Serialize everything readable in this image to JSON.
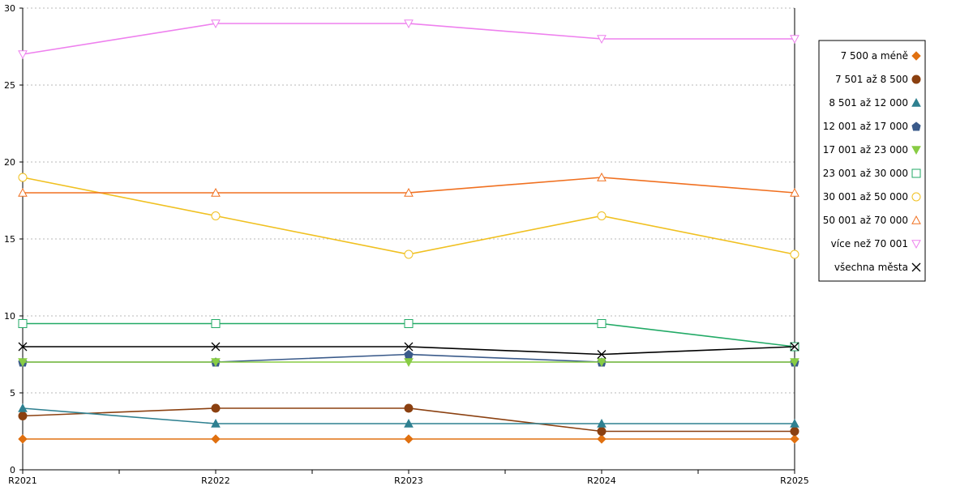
{
  "chart_data": {
    "type": "line",
    "categories": [
      "R2021",
      "R2022",
      "R2023",
      "R2024",
      "R2025"
    ],
    "ylim": [
      0,
      30
    ],
    "yticks": [
      0,
      5,
      10,
      15,
      20,
      25,
      30
    ],
    "grid": "horizontal-dotted",
    "legend_position": "right",
    "series": [
      {
        "name": "7 500 a méně",
        "values": [
          2,
          2,
          2,
          2,
          2
        ],
        "color": "#e07010",
        "marker": "diamond",
        "filled": true
      },
      {
        "name": "7 501 až 8 500",
        "values": [
          3.5,
          4,
          4,
          2.5,
          2.5
        ],
        "color": "#8b4010",
        "marker": "circle",
        "filled": true
      },
      {
        "name": "8 501 až 12 000",
        "values": [
          4,
          3,
          3,
          3,
          3
        ],
        "color": "#2f8090",
        "marker": "triangle-up",
        "filled": true
      },
      {
        "name": "12 001 až 17 000",
        "values": [
          7,
          7,
          7.5,
          7,
          7
        ],
        "color": "#3a5a8a",
        "marker": "pentagon",
        "filled": true
      },
      {
        "name": "17 001 až 23 000",
        "values": [
          7,
          7,
          7,
          7,
          7
        ],
        "color": "#88cc44",
        "marker": "triangle-down",
        "filled": true
      },
      {
        "name": "23 001 až 30 000",
        "values": [
          9.5,
          9.5,
          9.5,
          9.5,
          8
        ],
        "color": "#22aa66",
        "marker": "square",
        "filled": false
      },
      {
        "name": "30 001 až 50 000",
        "values": [
          19,
          16.5,
          14,
          16.5,
          14
        ],
        "color": "#f0c020",
        "marker": "circle",
        "filled": false
      },
      {
        "name": "50 001 až 70 000",
        "values": [
          18,
          18,
          18,
          19,
          18
        ],
        "color": "#f07020",
        "marker": "triangle-up",
        "filled": false
      },
      {
        "name": "více než 70 001",
        "values": [
          27,
          29,
          29,
          28,
          28
        ],
        "color": "#ee80ee",
        "marker": "triangle-down",
        "filled": false
      },
      {
        "name": "všechna města",
        "values": [
          8,
          8,
          8,
          7.5,
          8
        ],
        "color": "#000000",
        "marker": "x",
        "filled": false
      }
    ]
  }
}
